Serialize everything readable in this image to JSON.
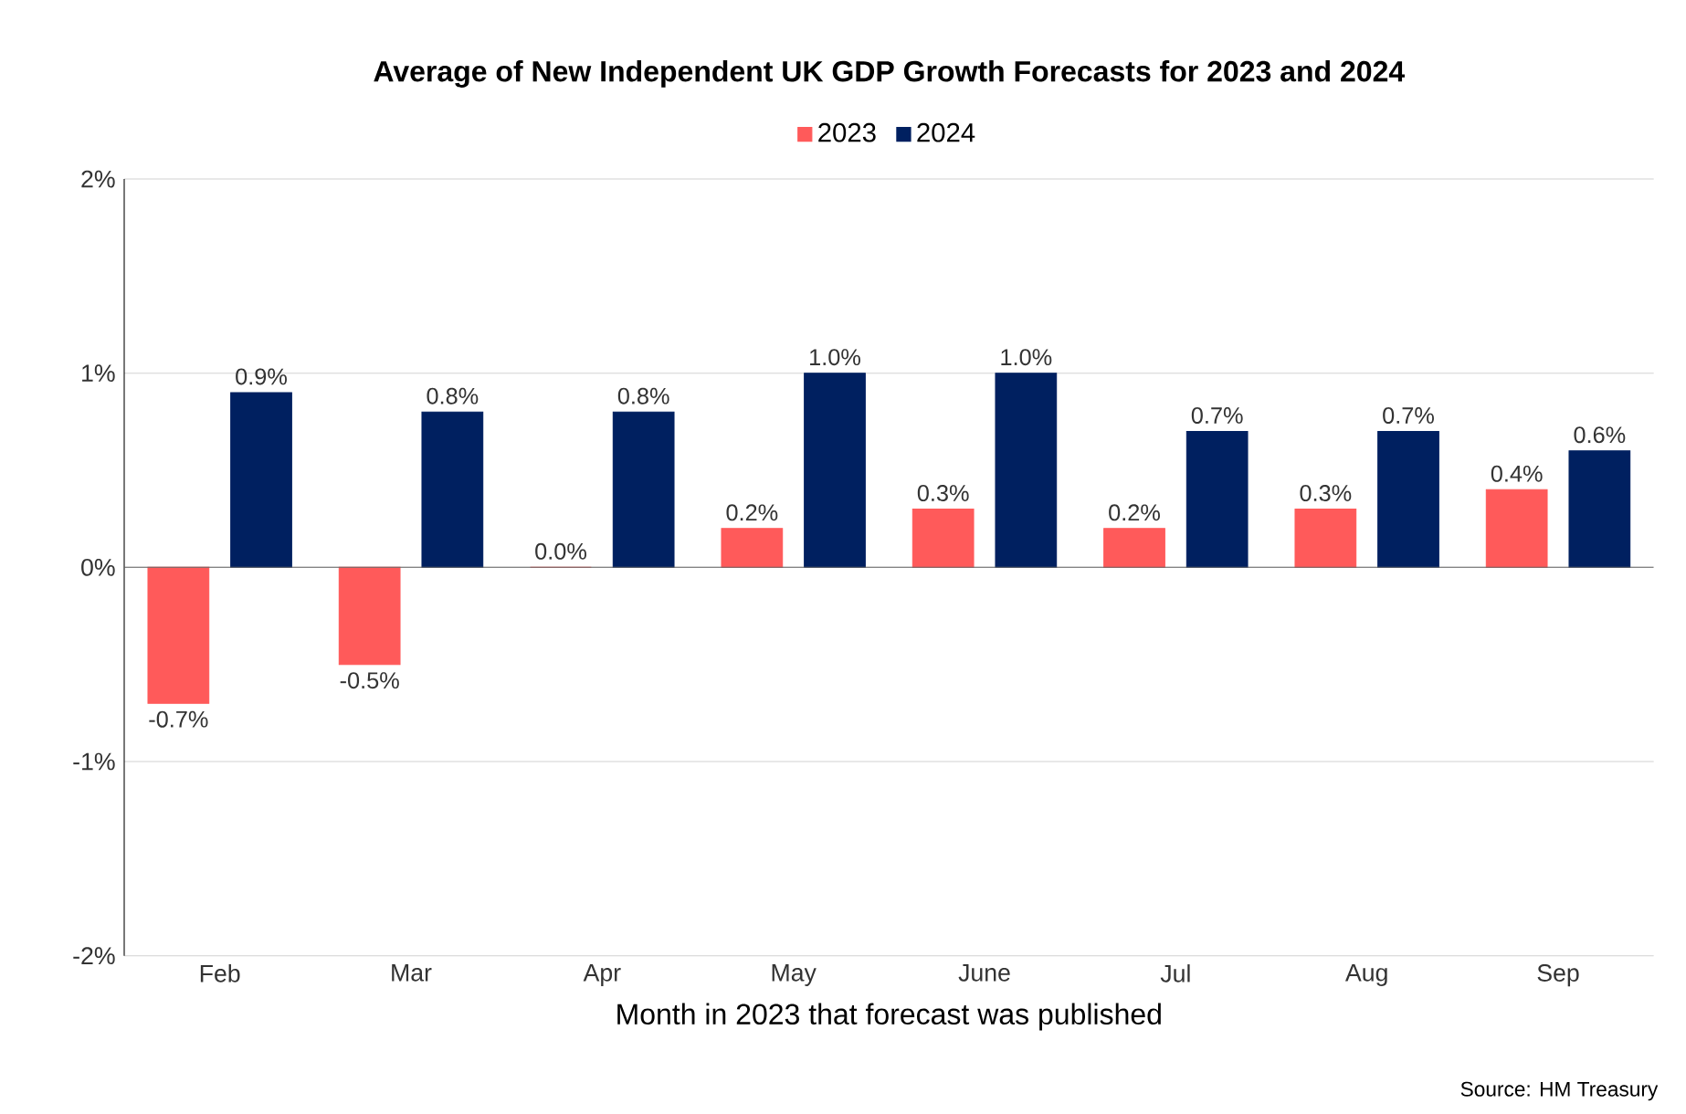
{
  "chart_data": {
    "type": "bar",
    "title": "Average of New Independent UK GDP Growth Forecasts for 2023 and 2024",
    "categories": [
      "Feb",
      "Mar",
      "Apr",
      "May",
      "June",
      "Jul",
      "Aug",
      "Sep"
    ],
    "series": [
      {
        "name": "2023",
        "color": "#ff5a5a",
        "values": [
          -0.7,
          -0.5,
          0.0,
          0.2,
          0.3,
          0.2,
          0.3,
          0.4
        ],
        "value_labels": [
          "-0.7%",
          "-0.5%",
          "0.0%",
          "0.2%",
          "0.3%",
          "0.2%",
          "0.3%",
          "0.4%"
        ]
      },
      {
        "name": "2024",
        "color": "#002060",
        "values": [
          0.9,
          0.8,
          0.8,
          1.0,
          1.0,
          0.7,
          0.7,
          0.6
        ],
        "value_labels": [
          "0.9%",
          "0.8%",
          "0.8%",
          "1.0%",
          "1.0%",
          "0.7%",
          "0.7%",
          "0.6%"
        ]
      }
    ],
    "xlabel": "Month in 2023 that forecast was published",
    "ylim": [
      -2,
      2
    ],
    "yticks": [
      {
        "value": -2,
        "label": "-2%"
      },
      {
        "value": -1,
        "label": "-1%"
      },
      {
        "value": 0,
        "label": "0%"
      },
      {
        "value": 1,
        "label": "1%"
      },
      {
        "value": 2,
        "label": "2%"
      }
    ],
    "grid": "y",
    "legend": "top",
    "annotations": [
      "Source: HM Treasury"
    ]
  }
}
